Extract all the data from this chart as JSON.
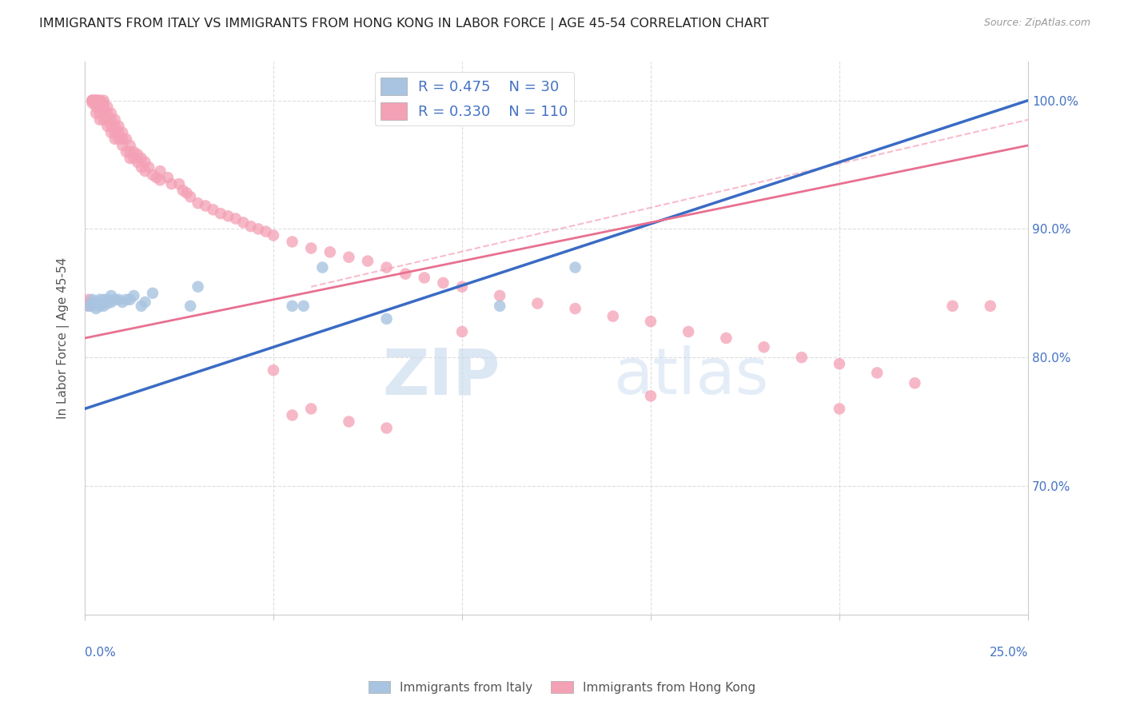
{
  "title": "IMMIGRANTS FROM ITALY VS IMMIGRANTS FROM HONG KONG IN LABOR FORCE | AGE 45-54 CORRELATION CHART",
  "source": "Source: ZipAtlas.com",
  "ylabel": "In Labor Force | Age 45-54",
  "ytick_labels": [
    "70.0%",
    "80.0%",
    "90.0%",
    "100.0%"
  ],
  "ytick_values": [
    0.7,
    0.8,
    0.9,
    1.0
  ],
  "xlim": [
    0.0,
    0.25
  ],
  "ylim": [
    0.6,
    1.03
  ],
  "italy_color": "#a8c4e0",
  "hong_kong_color": "#f4a0b5",
  "italy_R": 0.475,
  "italy_N": 30,
  "hong_kong_R": 0.33,
  "hong_kong_N": 110,
  "italy_line_color": "#3a6bc4",
  "hong_kong_line_color": "#e87090",
  "hong_kong_dashed_color": "#f4a0b5",
  "legend_text_color": "#4472c4",
  "italy_scatter_x": [
    0.001,
    0.002,
    0.002,
    0.003,
    0.003,
    0.004,
    0.004,
    0.005,
    0.005,
    0.006,
    0.006,
    0.007,
    0.007,
    0.008,
    0.009,
    0.01,
    0.011,
    0.012,
    0.013,
    0.015,
    0.016,
    0.018,
    0.028,
    0.03,
    0.055,
    0.058,
    0.063,
    0.08,
    0.11,
    0.13
  ],
  "italy_scatter_y": [
    0.84,
    0.84,
    0.845,
    0.838,
    0.843,
    0.84,
    0.845,
    0.84,
    0.845,
    0.842,
    0.845,
    0.843,
    0.848,
    0.845,
    0.845,
    0.843,
    0.845,
    0.845,
    0.848,
    0.84,
    0.843,
    0.85,
    0.84,
    0.855,
    0.84,
    0.84,
    0.87,
    0.83,
    0.84,
    0.87
  ],
  "hong_kong_scatter_x": [
    0.001,
    0.001,
    0.001,
    0.002,
    0.002,
    0.002,
    0.002,
    0.003,
    0.003,
    0.003,
    0.003,
    0.003,
    0.003,
    0.003,
    0.003,
    0.004,
    0.004,
    0.004,
    0.004,
    0.004,
    0.005,
    0.005,
    0.005,
    0.005,
    0.005,
    0.006,
    0.006,
    0.006,
    0.006,
    0.007,
    0.007,
    0.007,
    0.007,
    0.008,
    0.008,
    0.008,
    0.008,
    0.009,
    0.009,
    0.009,
    0.01,
    0.01,
    0.01,
    0.011,
    0.011,
    0.012,
    0.012,
    0.012,
    0.013,
    0.013,
    0.014,
    0.014,
    0.015,
    0.015,
    0.016,
    0.016,
    0.017,
    0.018,
    0.019,
    0.02,
    0.02,
    0.022,
    0.023,
    0.025,
    0.026,
    0.027,
    0.028,
    0.03,
    0.032,
    0.034,
    0.036,
    0.038,
    0.04,
    0.042,
    0.044,
    0.046,
    0.048,
    0.05,
    0.055,
    0.06,
    0.065,
    0.07,
    0.075,
    0.08,
    0.085,
    0.09,
    0.095,
    0.1,
    0.11,
    0.12,
    0.13,
    0.14,
    0.15,
    0.16,
    0.17,
    0.18,
    0.19,
    0.2,
    0.21,
    0.22,
    0.23,
    0.24,
    0.05,
    0.1,
    0.15,
    0.2,
    0.06,
    0.055,
    0.07,
    0.08
  ],
  "hong_kong_scatter_y": [
    0.84,
    0.845,
    0.843,
    1.0,
    1.0,
    1.0,
    0.998,
    1.0,
    1.0,
    1.0,
    1.0,
    0.998,
    0.998,
    0.995,
    0.99,
    1.0,
    1.0,
    0.995,
    0.99,
    0.985,
    1.0,
    0.998,
    0.995,
    0.99,
    0.985,
    0.995,
    0.99,
    0.985,
    0.98,
    0.99,
    0.985,
    0.98,
    0.975,
    0.985,
    0.98,
    0.975,
    0.97,
    0.98,
    0.975,
    0.97,
    0.975,
    0.97,
    0.965,
    0.97,
    0.96,
    0.965,
    0.96,
    0.955,
    0.96,
    0.955,
    0.958,
    0.952,
    0.955,
    0.948,
    0.952,
    0.945,
    0.948,
    0.942,
    0.94,
    0.945,
    0.938,
    0.94,
    0.935,
    0.935,
    0.93,
    0.928,
    0.925,
    0.92,
    0.918,
    0.915,
    0.912,
    0.91,
    0.908,
    0.905,
    0.902,
    0.9,
    0.898,
    0.895,
    0.89,
    0.885,
    0.882,
    0.878,
    0.875,
    0.87,
    0.865,
    0.862,
    0.858,
    0.855,
    0.848,
    0.842,
    0.838,
    0.832,
    0.828,
    0.82,
    0.815,
    0.808,
    0.8,
    0.795,
    0.788,
    0.78,
    0.84,
    0.84,
    0.79,
    0.82,
    0.77,
    0.76,
    0.76,
    0.755,
    0.75,
    0.745
  ],
  "watermark_zip": "ZIP",
  "watermark_atlas": "atlas",
  "background_color": "#ffffff",
  "grid_color": "#dddddd"
}
